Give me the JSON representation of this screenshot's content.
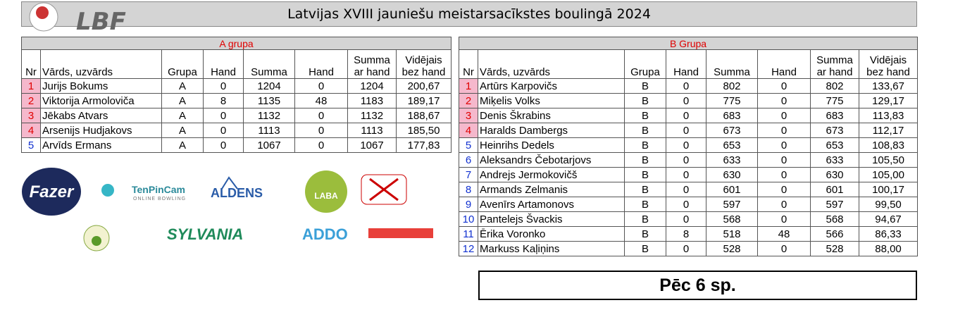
{
  "header": {
    "logo": "LBF",
    "title": "Latvijas XVIII jauniešu meistarsacīkstes boulingā 2024"
  },
  "tables": [
    {
      "title": "A grupa",
      "headers": [
        [
          "Nr"
        ],
        [
          "Vārds, uzvārds"
        ],
        [
          "Grupa"
        ],
        [
          "Hand"
        ],
        [
          "Summa"
        ],
        [
          "Hand"
        ],
        [
          "Summa",
          "ar hand"
        ],
        [
          "Vidējais",
          "bez hand"
        ]
      ],
      "rows": [
        [
          "1",
          "Jurijs Bokums",
          "A",
          "0",
          "1204",
          "0",
          "1204",
          "200,67"
        ],
        [
          "2",
          "Viktorija Armoloviča",
          "A",
          "8",
          "1135",
          "48",
          "1183",
          "189,17"
        ],
        [
          "3",
          "Jēkabs Atvars",
          "A",
          "0",
          "1132",
          "0",
          "1132",
          "188,67"
        ],
        [
          "4",
          "Arsenijs Hudjakovs",
          "A",
          "0",
          "1113",
          "0",
          "1113",
          "185,50"
        ],
        [
          "5",
          "Arvīds Ermans",
          "A",
          "0",
          "1067",
          "0",
          "1067",
          "177,83"
        ]
      ]
    },
    {
      "title": "B Grupa",
      "headers": [
        [
          "Nr"
        ],
        [
          "Vārds, uzvārds"
        ],
        [
          "Grupa"
        ],
        [
          "Hand"
        ],
        [
          "Summa"
        ],
        [
          "Hand"
        ],
        [
          "Summa",
          "ar hand"
        ],
        [
          "Vidējais",
          "bez hand"
        ]
      ],
      "rows": [
        [
          "1",
          "Artūrs Karpovičs",
          "B",
          "0",
          "802",
          "0",
          "802",
          "133,67"
        ],
        [
          "2",
          "Miķelis Volks",
          "B",
          "0",
          "775",
          "0",
          "775",
          "129,17"
        ],
        [
          "3",
          "Denis Škrabins",
          "B",
          "0",
          "683",
          "0",
          "683",
          "113,83"
        ],
        [
          "4",
          "Haralds Dambergs",
          "B",
          "0",
          "673",
          "0",
          "673",
          "112,17"
        ],
        [
          "5",
          "Heinrihs Dedels",
          "B",
          "0",
          "653",
          "0",
          "653",
          "108,83"
        ],
        [
          "6",
          "Aleksandrs Čebotarjovs",
          "B",
          "0",
          "633",
          "0",
          "633",
          "105,50"
        ],
        [
          "7",
          "Andrejs Jermokovičš",
          "B",
          "0",
          "630",
          "0",
          "630",
          "105,00"
        ],
        [
          "8",
          "Armands Zelmanis",
          "B",
          "0",
          "601",
          "0",
          "601",
          "100,17"
        ],
        [
          "9",
          "Avenīrs Artamonovs",
          "B",
          "0",
          "597",
          "0",
          "597",
          "99,50"
        ],
        [
          "10",
          "Pantelejs Švackis",
          "B",
          "0",
          "568",
          "0",
          "568",
          "94,67"
        ],
        [
          "11",
          "Ērika Voronko",
          "B",
          "8",
          "518",
          "48",
          "566",
          "86,33"
        ],
        [
          "12",
          "Markuss Kaļiņins",
          "B",
          "0",
          "528",
          "0",
          "528",
          "88,00"
        ]
      ]
    }
  ],
  "sponsors": [
    "Fazer",
    "TenPinCam",
    "ONLINE BOWLING",
    "ALDENS",
    "LABA",
    "SYLVANIA",
    "ADDO"
  ],
  "footer": "Pēc 6 sp."
}
